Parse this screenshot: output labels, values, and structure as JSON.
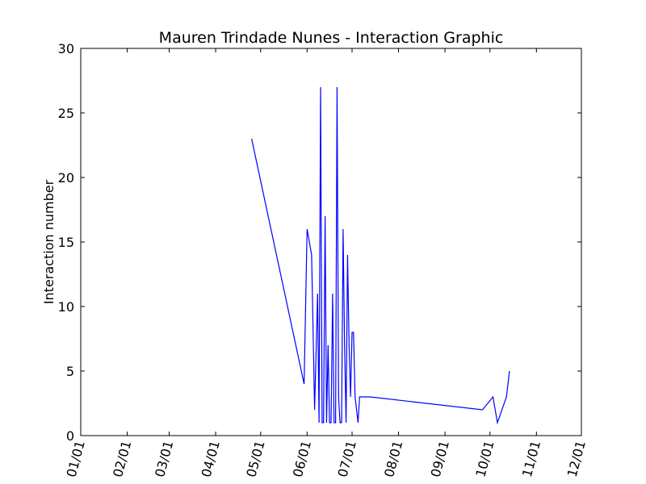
{
  "chart_data": {
    "type": "line",
    "title": "Mauren Trindade Nunes - Interaction Graphic",
    "xlabel": "",
    "ylabel": "Interaction number",
    "x_axis_type": "date",
    "x_tick_labels": [
      "01/01",
      "02/01",
      "03/01",
      "04/01",
      "05/01",
      "06/01",
      "07/01",
      "08/01",
      "09/01",
      "10/01",
      "11/01",
      "12/01"
    ],
    "x_tick_dates": [
      "2014-01-01",
      "2014-02-01",
      "2014-03-01",
      "2014-04-01",
      "2014-05-01",
      "2014-06-01",
      "2014-07-01",
      "2014-08-01",
      "2014-09-01",
      "2014-10-01",
      "2014-11-01",
      "2014-12-01"
    ],
    "xlim": [
      "2014-01-01",
      "2014-12-01"
    ],
    "ylim": [
      0,
      30
    ],
    "y_ticks": [
      0,
      5,
      10,
      15,
      20,
      25,
      30
    ],
    "grid": false,
    "series": [
      {
        "color": "#0000ff",
        "x": [
          "2014-04-25",
          "2014-05-30",
          "2014-06-01",
          "2014-06-04",
          "2014-06-06",
          "2014-06-08",
          "2014-06-09",
          "2014-06-10",
          "2014-06-11",
          "2014-06-12",
          "2014-06-13",
          "2014-06-14",
          "2014-06-15",
          "2014-06-16",
          "2014-06-17",
          "2014-06-18",
          "2014-06-19",
          "2014-06-20",
          "2014-06-21",
          "2014-06-22",
          "2014-06-23",
          "2014-06-24",
          "2014-06-25",
          "2014-06-26",
          "2014-06-27",
          "2014-06-28",
          "2014-06-29",
          "2014-06-30",
          "2014-07-01",
          "2014-07-02",
          "2014-07-03",
          "2014-07-04",
          "2014-07-05",
          "2014-07-06",
          "2014-07-07",
          "2014-07-08",
          "2014-07-10",
          "2014-07-12",
          "2014-07-13",
          "2014-09-26",
          "2014-10-03",
          "2014-10-06",
          "2014-10-12",
          "2014-10-14"
        ],
        "y": [
          23,
          4,
          16,
          14,
          2,
          11,
          1,
          27,
          1,
          1,
          17,
          1,
          7,
          1,
          1,
          11,
          1,
          1,
          27,
          3,
          1,
          1,
          16,
          7,
          1,
          14,
          7,
          3,
          8,
          8,
          3,
          2,
          1,
          3,
          3,
          3,
          3,
          3,
          3,
          2,
          3,
          1,
          3,
          5
        ]
      }
    ]
  }
}
